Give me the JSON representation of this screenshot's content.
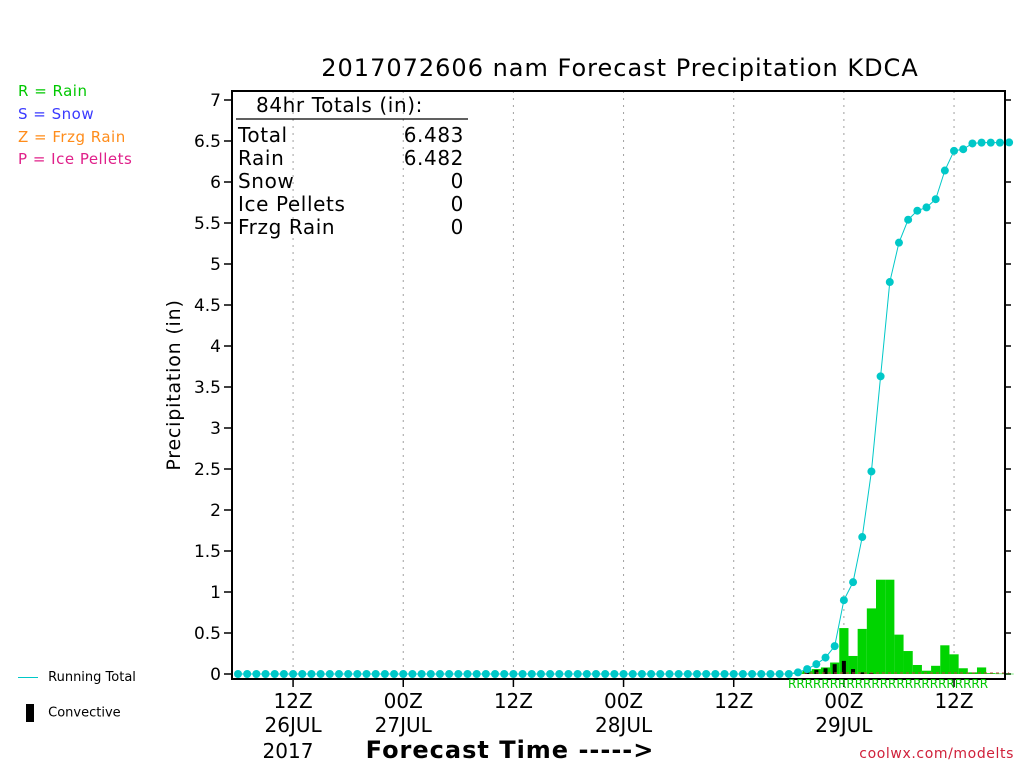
{
  "chart_data": {
    "type": "line",
    "title": "2017072606 nam Forecast Precipitation KDCA",
    "xlabel": "Forecast Time ----->",
    "ylabel": "Precipitation (in)",
    "ylim": [
      0,
      7.2
    ],
    "y_ticks": [
      "0",
      "0.5",
      "1",
      "1.5",
      "2",
      "2.5",
      "3",
      "3.5",
      "4",
      "4.5",
      "5",
      "5.5",
      "6",
      "6.5",
      "7"
    ],
    "x_ticks": [
      {
        "hour": 6,
        "label": "12Z",
        "date": "26JUL"
      },
      {
        "hour": 18,
        "label": "00Z",
        "date": "27JUL"
      },
      {
        "hour": 30,
        "label": "12Z",
        "date": ""
      },
      {
        "hour": 42,
        "label": "00Z",
        "date": "28JUL"
      },
      {
        "hour": 54,
        "label": "12Z",
        "date": ""
      },
      {
        "hour": 66,
        "label": "00Z",
        "date": "29JUL"
      },
      {
        "hour": 78,
        "label": "12Z",
        "date": ""
      }
    ],
    "year_label": "2017",
    "xlim_hours": [
      0,
      84
    ],
    "grid": "vertical dotted",
    "totals_box": {
      "header": "84hr Totals (in):",
      "rows": [
        {
          "label": "Total",
          "value": "6.483"
        },
        {
          "label": "Rain",
          "value": "6.482"
        },
        {
          "label": "Snow",
          "value": "0"
        },
        {
          "label": "Ice Pellets",
          "value": "0"
        },
        {
          "label": "Frzg Rain",
          "value": "0"
        }
      ]
    },
    "running_total": {
      "name": "Running Total",
      "color": "#00c8c8",
      "hours": [
        0,
        1,
        2,
        3,
        4,
        5,
        6,
        7,
        8,
        9,
        10,
        11,
        12,
        13,
        14,
        15,
        16,
        17,
        18,
        19,
        20,
        21,
        22,
        23,
        24,
        25,
        26,
        27,
        28,
        29,
        30,
        31,
        32,
        33,
        34,
        35,
        36,
        37,
        38,
        39,
        40,
        41,
        42,
        43,
        44,
        45,
        46,
        47,
        48,
        49,
        50,
        51,
        52,
        53,
        54,
        55,
        56,
        57,
        58,
        59,
        60,
        61,
        62,
        63,
        64,
        65,
        66,
        67,
        68,
        69,
        70,
        71,
        72,
        73,
        74,
        75,
        76,
        77,
        78,
        79,
        80,
        81,
        82,
        83,
        84
      ],
      "values": [
        0,
        0,
        0,
        0,
        0,
        0,
        0,
        0,
        0,
        0,
        0,
        0,
        0,
        0,
        0,
        0,
        0,
        0,
        0,
        0,
        0,
        0,
        0,
        0,
        0,
        0,
        0,
        0,
        0,
        0,
        0,
        0,
        0,
        0,
        0,
        0,
        0,
        0,
        0,
        0,
        0,
        0,
        0,
        0,
        0,
        0,
        0,
        0,
        0,
        0,
        0,
        0,
        0,
        0,
        0,
        0,
        0,
        0,
        0,
        0,
        0,
        0.02,
        0.06,
        0.12,
        0.2,
        0.34,
        0.9,
        1.12,
        1.67,
        2.47,
        3.63,
        4.78,
        5.26,
        5.54,
        5.65,
        5.69,
        5.79,
        6.14,
        6.38,
        6.4,
        6.47,
        6.48,
        6.48,
        6.48,
        6.483
      ]
    },
    "hourly_precip": {
      "name": "Rain",
      "color": "#00d400",
      "hours": [
        61,
        62,
        63,
        64,
        65,
        66,
        67,
        68,
        69,
        70,
        71,
        72,
        73,
        74,
        75,
        76,
        77,
        78,
        79,
        80,
        81,
        82,
        83,
        84
      ],
      "values": [
        0.02,
        0.04,
        0.06,
        0.08,
        0.14,
        0.56,
        0.22,
        0.55,
        0.8,
        1.15,
        1.15,
        0.48,
        0.28,
        0.11,
        0.04,
        0.1,
        0.35,
        0.24,
        0.07,
        0.02,
        0.08,
        0.01,
        0.005,
        0.003
      ]
    },
    "convective": {
      "name": "Convective",
      "color": "#000000",
      "hours": [
        61,
        62,
        63,
        64,
        65,
        66,
        67,
        68,
        69,
        70,
        71,
        72,
        73,
        74,
        75,
        76,
        77,
        78,
        79,
        80,
        81,
        82,
        83,
        84
      ],
      "values": [
        0.01,
        0.03,
        0.05,
        0.07,
        0.12,
        0.16,
        0.06,
        0.02,
        0.01,
        0,
        0,
        0,
        0,
        0,
        0,
        0,
        0,
        0,
        0,
        0,
        0,
        0,
        0,
        0
      ]
    },
    "ptype_strip": {
      "text": "RRRRRRRRRRRRRRRRRRRRRRRR",
      "color": "#00c800"
    }
  },
  "legend": {
    "items": [
      {
        "text": "R = Rain",
        "color": "#00c800"
      },
      {
        "text": "S = Snow",
        "color": "#3a3aff"
      },
      {
        "text": "Z = Frzg Rain",
        "color": "#ff8c1a"
      },
      {
        "text": "P = Ice Pellets",
        "color": "#e0208a"
      }
    ],
    "running_total_label": "Running Total",
    "convective_label": "Convective"
  },
  "credit": "coolwx.com/modelts"
}
